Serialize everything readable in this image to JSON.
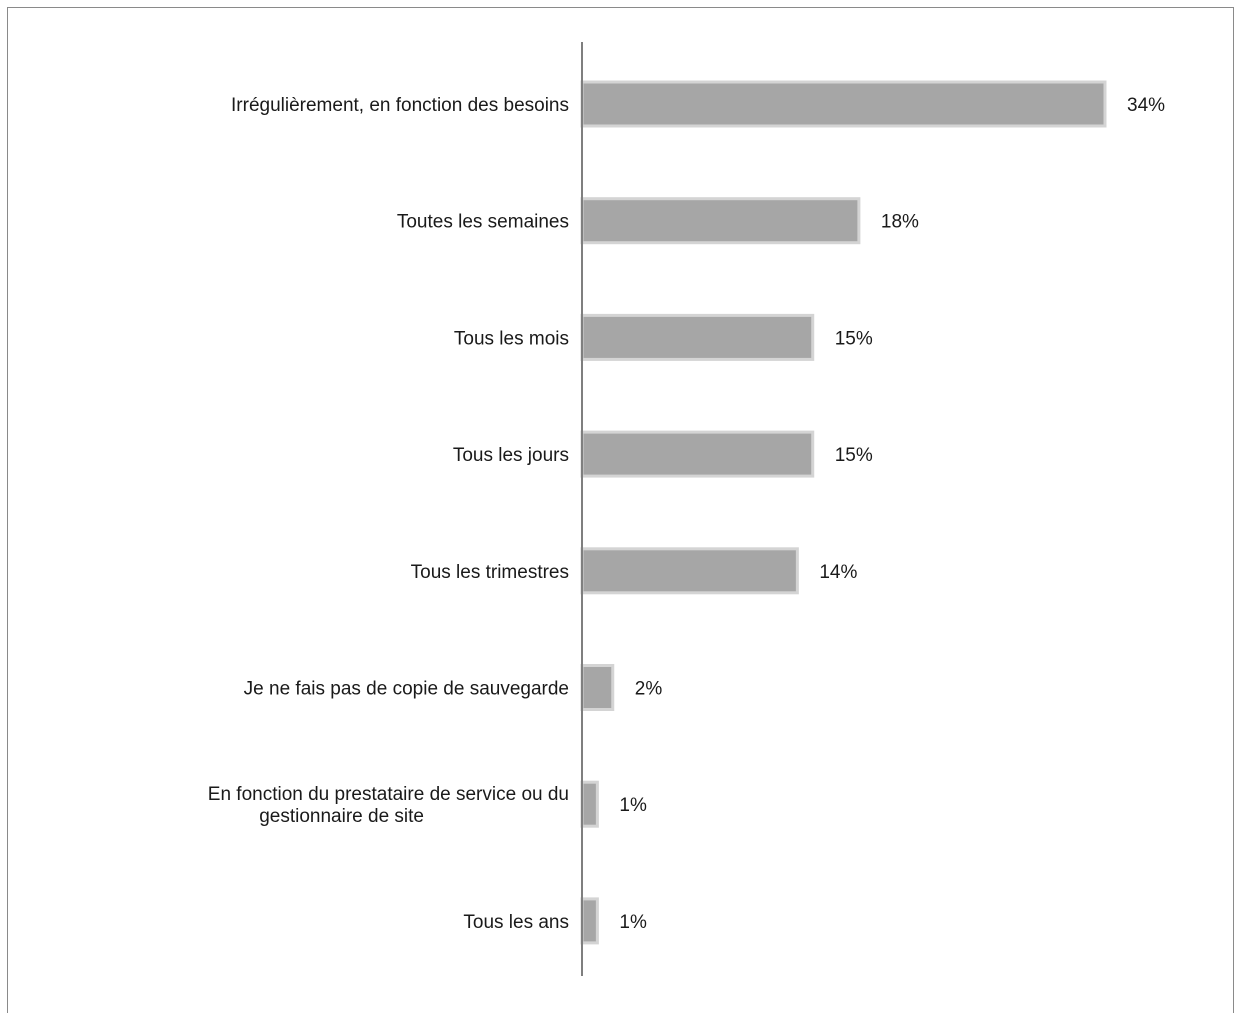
{
  "chart_data": {
    "type": "bar",
    "orientation": "horizontal",
    "title": "",
    "xlabel": "",
    "ylabel": "",
    "categories": [
      [
        "Irrégulièrement, en fonction des besoins"
      ],
      [
        "Toutes les semaines"
      ],
      [
        "Tous les mois"
      ],
      [
        "Tous les jours"
      ],
      [
        "Tous les trimestres"
      ],
      [
        "Je ne fais pas de copie de sauvegarde"
      ],
      [
        "En fonction du prestataire de service ou du",
        "gestionnaire de site"
      ],
      [
        "Tous les ans"
      ]
    ],
    "values": [
      34,
      18,
      15,
      15,
      14,
      2,
      1,
      1
    ],
    "value_labels": [
      "34%",
      "18%",
      "15%",
      "15%",
      "14%",
      "2%",
      "1%",
      "1%"
    ],
    "unit": "%",
    "xlim": [
      0,
      34
    ],
    "grid": false,
    "legend": "none",
    "bar_color": "#a6a6a6",
    "axis_color": "#7f7f7f"
  }
}
